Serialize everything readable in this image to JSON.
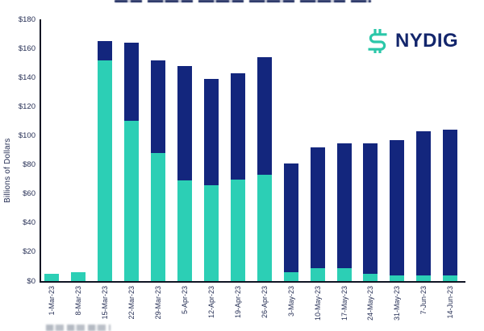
{
  "branding": {
    "logo_text": "NYDIG",
    "logo_mark_icon": "dollar-squiggle-icon",
    "logo_mark_color": "#2BC7A9",
    "logo_text_color": "#13266C"
  },
  "colors": {
    "bar_teal": "#2CCFB5",
    "bar_navy": "#13267D",
    "axis_line": "#101423",
    "tick_text": "#252E54",
    "background": "#FFFFFF"
  },
  "chart_data": {
    "type": "bar",
    "stacked": true,
    "title": "",
    "ylabel": "Billions of Dollars",
    "ylim": [
      0,
      180
    ],
    "grid": false,
    "legend_position": "clipped-bottom",
    "categories": [
      "1-Mar-23",
      "8-Mar-23",
      "15-Mar-23",
      "22-Mar-23",
      "29-Mar-23",
      "5-Apr-23",
      "12-Apr-23",
      "19-Apr-23",
      "26-Apr-23",
      "3-May-23",
      "10-May-23",
      "17-May-23",
      "24-May-23",
      "31-May-23",
      "7-Jun-23",
      "14-Jun-23"
    ],
    "series": [
      {
        "name": "teal-segment",
        "color": "#2CCFB5",
        "values": [
          5,
          6,
          152,
          110,
          88,
          69,
          66,
          70,
          73,
          6,
          9,
          9,
          5,
          4,
          4,
          4
        ]
      },
      {
        "name": "navy-segment",
        "color": "#13267D",
        "values": [
          0,
          0,
          13,
          54,
          64,
          79,
          73,
          73,
          81,
          75,
          83,
          86,
          90,
          93,
          99,
          100
        ]
      }
    ],
    "totals": [
      5,
      6,
      165,
      164,
      152,
      148,
      139,
      143,
      154,
      81,
      92,
      95,
      95,
      97,
      103,
      104
    ],
    "yticks": [
      {
        "label": "$180",
        "value": 180
      },
      {
        "label": "$160",
        "value": 160
      },
      {
        "label": "$140",
        "value": 140
      },
      {
        "label": "$120",
        "value": 120
      },
      {
        "label": "$100",
        "value": 100
      },
      {
        "label": "$80",
        "value": 80
      },
      {
        "label": "$60",
        "value": 60
      },
      {
        "label": "$40",
        "value": 40
      },
      {
        "label": "$20",
        "value": 20
      },
      {
        "label": "$0",
        "value": 0
      }
    ]
  }
}
